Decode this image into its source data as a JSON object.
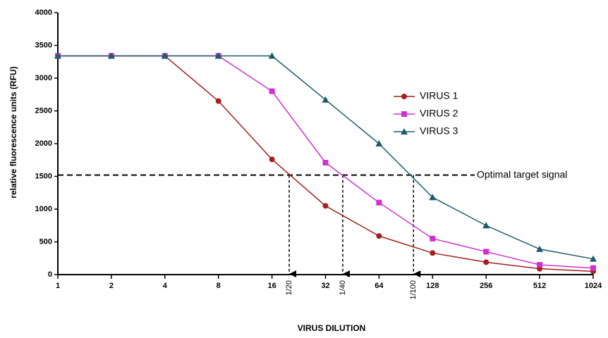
{
  "chart_data": {
    "type": "line",
    "x_label": "VIRUS DILUTION",
    "y_label": "relative fluorescence units (RFU)",
    "x": [
      1,
      2,
      4,
      8,
      16,
      32,
      64,
      128,
      256,
      512,
      1024
    ],
    "xscale": "log2",
    "xlim": [
      1,
      1024
    ],
    "xticks": [
      1,
      2,
      4,
      8,
      16,
      32,
      64,
      128,
      256,
      512,
      1024
    ],
    "ylim": [
      0,
      4000
    ],
    "yticks": [
      0,
      500,
      1000,
      1500,
      2000,
      2500,
      3000,
      3500,
      4000
    ],
    "legend": "right",
    "series": [
      {
        "name": "VIRUS 1",
        "color": "#a3201c",
        "marker": "circle",
        "values": [
          3340,
          3340,
          3340,
          2650,
          1760,
          1050,
          590,
          330,
          190,
          90,
          50
        ]
      },
      {
        "name": "VIRUS 2",
        "color": "#d030d0",
        "marker": "square",
        "values": [
          3340,
          3340,
          3340,
          3340,
          2800,
          1710,
          1100,
          550,
          350,
          150,
          100
        ]
      },
      {
        "name": "VIRUS 3",
        "color": "#1e5b66",
        "marker": "triangle",
        "values": [
          3340,
          3340,
          3340,
          3340,
          3340,
          2670,
          2000,
          1180,
          750,
          390,
          240
        ]
      }
    ],
    "target_line": {
      "value": 1520,
      "label": "Optimal target signal"
    },
    "arrows": [
      {
        "x": 20,
        "label": "1/20"
      },
      {
        "x": 40,
        "label": "1/40"
      },
      {
        "x": 100,
        "label": "1/100"
      }
    ]
  }
}
